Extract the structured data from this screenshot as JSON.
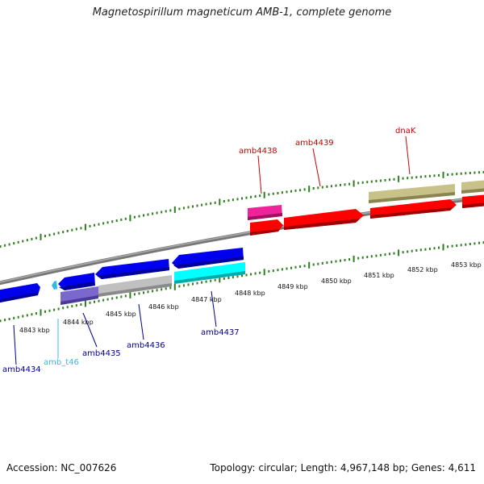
{
  "title": "Magnetospirillum magneticum AMB-1, complete genome",
  "footer": {
    "accession": "Accession: NC_007626",
    "topology": "Topology: circular; Length: 4,967,148 bp; Genes: 4,611"
  },
  "scale_labels": [
    "4843 kbp",
    "4844 kbp",
    "4845 kbp",
    "4846 kbp",
    "4847 kbp",
    "4848 kbp",
    "4849 kbp",
    "4850 kbp",
    "4851 kbp",
    "4852 kbp",
    "4853 kbp"
  ],
  "gene_labels": [
    {
      "name": "amb4434",
      "color": "#00008b"
    },
    {
      "name": "amb_t46",
      "color": "#33bbdd"
    },
    {
      "name": "amb4435",
      "color": "#00008b"
    },
    {
      "name": "amb4436",
      "color": "#00008b"
    },
    {
      "name": "amb4437",
      "color": "#00008b"
    },
    {
      "name": "amb4438",
      "color": "#cc0000"
    },
    {
      "name": "amb4439",
      "color": "#cc0000"
    },
    {
      "name": "dnaK",
      "color": "#cc0000"
    }
  ],
  "colors": {
    "tick": "#2e7d1e",
    "backbone": "#808080",
    "forward_gene": "#ff0000",
    "reverse_gene": "#0000ee",
    "trna": "#33bbdd",
    "cds_reverse_light": "#00ffff",
    "cds_forward_magenta": "#ee2299",
    "cds_khaki": "#c8c28a",
    "cds_grey": "#c0c0c0",
    "cds_purple": "#7b68cc"
  }
}
